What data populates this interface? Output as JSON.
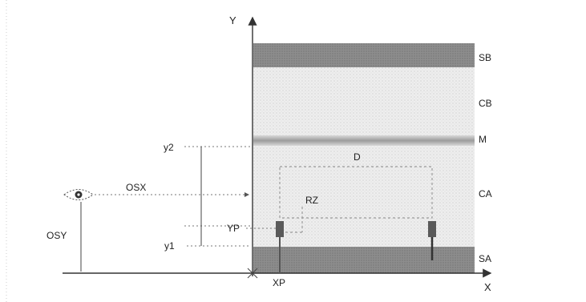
{
  "diagram": {
    "axes": {
      "x_label": "X",
      "y_label": "Y"
    },
    "layers": [
      {
        "key": "sb",
        "label": "SB"
      },
      {
        "key": "cb",
        "label": "CB"
      },
      {
        "key": "m",
        "label": "M"
      },
      {
        "key": "ca",
        "label": "CA"
      },
      {
        "key": "sa",
        "label": "SA"
      }
    ],
    "dimensions": {
      "y2": "y2",
      "y1": "y1",
      "osx": "OSX",
      "osy": "OSY",
      "yp": "YP",
      "xp": "XP",
      "d": "D",
      "rz": "RZ"
    },
    "colors": {
      "sb_band": "#8f8f8f",
      "sa_band": "#8f8f8f",
      "m_band": "#a9a9a9",
      "body_fill": "#ececec",
      "stipple": "#cfcfcf",
      "marker": "#555555"
    },
    "icons": {
      "observer": "eye-icon"
    }
  }
}
